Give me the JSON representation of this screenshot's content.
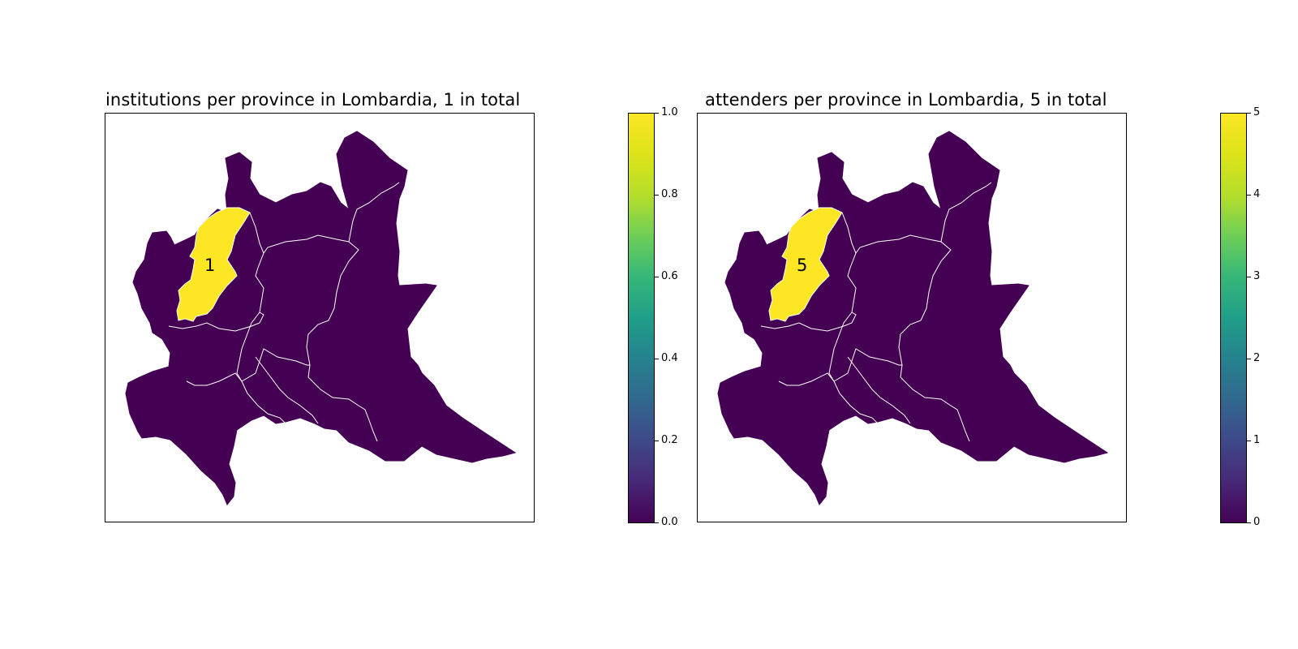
{
  "maps": [
    {
      "title": "institutions per province in Lombardia, 1 in total",
      "highlighted_value_label": "1",
      "colorbar_ticks": [
        "0.0",
        "0.2",
        "0.4",
        "0.6",
        "0.8",
        "1.0"
      ]
    },
    {
      "title": "attenders per province in Lombardia, 5 in total",
      "highlighted_value_label": "5",
      "colorbar_ticks": [
        "0",
        "1",
        "2",
        "3",
        "4",
        "5"
      ]
    }
  ],
  "colors": {
    "low": "#440154",
    "high": "#fde725",
    "border": "#ffffff"
  }
}
